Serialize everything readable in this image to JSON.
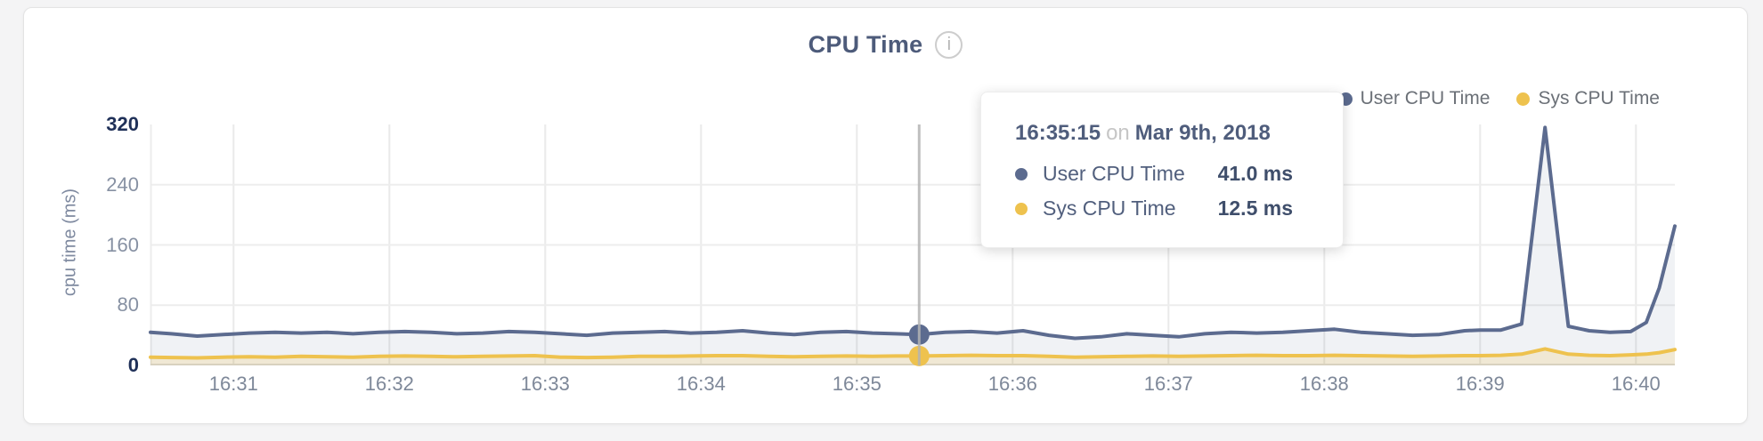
{
  "card": {
    "title": "CPU Time",
    "info_icon": "i"
  },
  "legend": [
    {
      "label": "User CPU Time",
      "color": "#5c6b8f"
    },
    {
      "label": "Sys CPU Time",
      "color": "#eec24e"
    }
  ],
  "tooltip": {
    "time": "16:35:15",
    "preposition": "on",
    "date": "Mar 9th, 2018",
    "rows": [
      {
        "label": "User CPU Time",
        "value": "41.0 ms",
        "color": "#5c6b8f"
      },
      {
        "label": "Sys CPU Time",
        "value": "12.5 ms",
        "color": "#eec24e"
      }
    ]
  },
  "chart_data": {
    "type": "line",
    "title": "CPU Time",
    "ylabel": "cpu time (ms)",
    "ylim": [
      0,
      320
    ],
    "grid": true,
    "legend_position": "top-right",
    "x_domain_seconds": [
      0,
      587
    ],
    "y_ticks": [
      {
        "value": 320,
        "label": "320",
        "emphasis": true
      },
      {
        "value": 240,
        "label": "240",
        "emphasis": false
      },
      {
        "value": 160,
        "label": "160",
        "emphasis": false
      },
      {
        "value": 80,
        "label": "80",
        "emphasis": false
      },
      {
        "value": 0,
        "label": "0",
        "emphasis": true
      }
    ],
    "x_ticks": [
      {
        "t": 32,
        "label": "16:31"
      },
      {
        "t": 92,
        "label": "16:32"
      },
      {
        "t": 152,
        "label": "16:33"
      },
      {
        "t": 212,
        "label": "16:34"
      },
      {
        "t": 272,
        "label": "16:35"
      },
      {
        "t": 332,
        "label": "16:36"
      },
      {
        "t": 392,
        "label": "16:37"
      },
      {
        "t": 452,
        "label": "16:38"
      },
      {
        "t": 512,
        "label": "16:39"
      },
      {
        "t": 572,
        "label": "16:40"
      }
    ],
    "t": [
      0,
      8,
      18,
      28,
      38,
      48,
      58,
      68,
      78,
      88,
      98,
      108,
      118,
      128,
      138,
      148,
      158,
      168,
      178,
      188,
      198,
      208,
      218,
      228,
      238,
      248,
      258,
      268,
      278,
      287,
      296,
      306,
      316,
      326,
      336,
      346,
      356,
      366,
      376,
      386,
      396,
      406,
      416,
      426,
      436,
      446,
      456,
      466,
      476,
      486,
      496,
      506,
      512,
      520,
      528,
      537,
      546,
      554,
      562,
      570,
      576,
      581,
      587
    ],
    "series": [
      {
        "name": "User CPU Time",
        "color": "#5c6b8f",
        "fill": "rgba(92,107,143,0.09)",
        "unit": "ms",
        "values": [
          44,
          42,
          39,
          41,
          43,
          44,
          43,
          44,
          42,
          44,
          45,
          44,
          42,
          43,
          45,
          44,
          42,
          40,
          43,
          44,
          45,
          43,
          44,
          46,
          43,
          41,
          44,
          45,
          43,
          42,
          41,
          44,
          45,
          43,
          46,
          40,
          36,
          38,
          42,
          40,
          38,
          42,
          44,
          43,
          44,
          46,
          48,
          44,
          42,
          40,
          41,
          46,
          47,
          47,
          55,
          316,
          52,
          46,
          44,
          45,
          57,
          103,
          185
        ]
      },
      {
        "name": "Sys CPU Time",
        "color": "#eec24e",
        "fill": "rgba(238,194,78,0.20)",
        "unit": "ms",
        "values": [
          11,
          10.5,
          10,
          11,
          11.5,
          11,
          12,
          11.5,
          11,
          12,
          12.5,
          12,
          11.5,
          12,
          12.5,
          13,
          11,
          10.5,
          11,
          12,
          12,
          12.5,
          13,
          13,
          12,
          11.5,
          12,
          12.5,
          12,
          12.5,
          12.5,
          13,
          13.5,
          13,
          13,
          12,
          11,
          11.5,
          12,
          12.5,
          12,
          12.5,
          13,
          13.5,
          13,
          13,
          13.5,
          13,
          12.5,
          12,
          12.5,
          13,
          13,
          13.5,
          15,
          22,
          15,
          13.5,
          13,
          14,
          15,
          17,
          21
        ]
      },
      {
        "name": "hover",
        "note": "crosshair state shown in screenshot",
        "t": 296,
        "time_label": "16:35:15",
        "user_value": 41.0,
        "sys_value": 12.5
      }
    ]
  }
}
